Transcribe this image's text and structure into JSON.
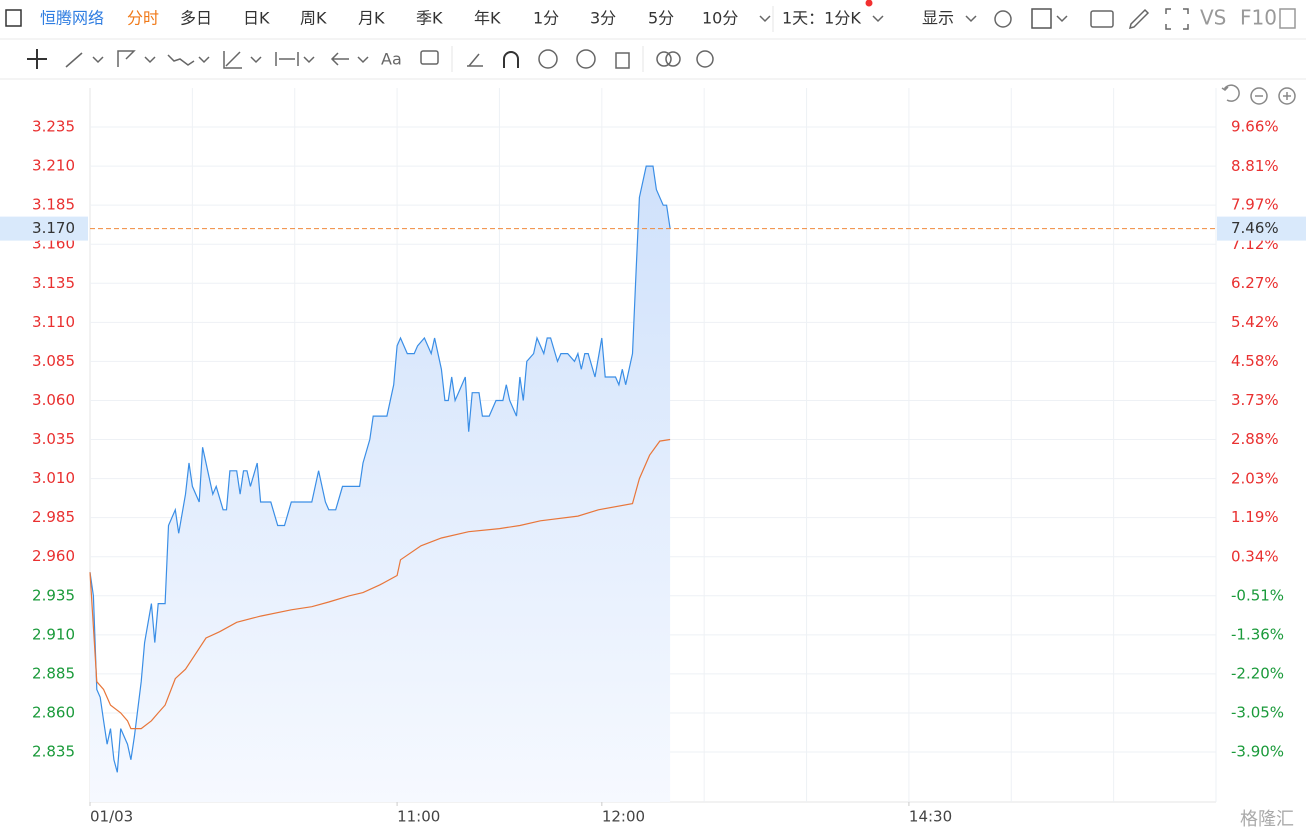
{
  "toolbar": {
    "stock_name": "恒腾网络",
    "periods": [
      "分时",
      "多日",
      "日K",
      "周K",
      "月K",
      "季K",
      "年K",
      "1分",
      "3分",
      "5分",
      "10分"
    ],
    "range": "1天：1分K",
    "display": "显示",
    "vs": "VS",
    "f10": "F10",
    "text_tool": "Aa"
  },
  "watermark": "格隆汇",
  "chart_data": {
    "type": "line",
    "xlim": [
      0,
      330
    ],
    "xticks": [
      {
        "value": 0,
        "label": "01/03"
      },
      {
        "value": 90,
        "label": "11:00"
      },
      {
        "value": 150,
        "label": "12:00"
      },
      {
        "value": 240,
        "label": "14:30"
      }
    ],
    "xgrid": [
      30,
      60,
      90,
      120,
      150,
      180,
      210,
      240,
      270,
      300,
      330
    ],
    "ylim": [
      2.803,
      3.26
    ],
    "yticks": [
      {
        "value": 2.835,
        "label": "2.835"
      },
      {
        "value": 2.86,
        "label": "2.860"
      },
      {
        "value": 2.885,
        "label": "2.885"
      },
      {
        "value": 2.91,
        "label": "2.910"
      },
      {
        "value": 2.935,
        "label": "2.935"
      },
      {
        "value": 2.96,
        "label": "2.960"
      },
      {
        "value": 2.985,
        "label": "2.985"
      },
      {
        "value": 3.01,
        "label": "3.010"
      },
      {
        "value": 3.035,
        "label": "3.035"
      },
      {
        "value": 3.06,
        "label": "3.060"
      },
      {
        "value": 3.085,
        "label": "3.085"
      },
      {
        "value": 3.11,
        "label": "3.110"
      },
      {
        "value": 3.135,
        "label": "3.135"
      },
      {
        "value": 3.16,
        "label": "3.160"
      },
      {
        "value": 3.185,
        "label": "3.185"
      },
      {
        "value": 3.21,
        "label": "3.210"
      },
      {
        "value": 3.235,
        "label": "3.235"
      }
    ],
    "y2lim": [
      -4.98,
      10.51
    ],
    "y2ticks": [
      {
        "value": -3.9,
        "label": "-3.90%"
      },
      {
        "value": -3.05,
        "label": "-3.05%"
      },
      {
        "value": -2.2,
        "label": "-2.20%"
      },
      {
        "value": -1.36,
        "label": "-1.36%"
      },
      {
        "value": -0.51,
        "label": "-0.51%"
      },
      {
        "value": 0.34,
        "label": "0.34%"
      },
      {
        "value": 1.19,
        "label": "1.19%"
      },
      {
        "value": 2.03,
        "label": "2.03%"
      },
      {
        "value": 2.88,
        "label": "2.88%"
      },
      {
        "value": 3.73,
        "label": "3.73%"
      },
      {
        "value": 4.58,
        "label": "4.58%"
      },
      {
        "value": 5.42,
        "label": "5.42%"
      },
      {
        "value": 6.27,
        "label": "6.27%"
      },
      {
        "value": 7.12,
        "label": "7.12%"
      },
      {
        "value": 7.97,
        "label": "7.97%"
      },
      {
        "value": 8.81,
        "label": "8.81%"
      },
      {
        "value": 9.66,
        "label": "9.66%"
      }
    ],
    "grid": true,
    "last_price": {
      "value": 3.17,
      "label": "3.170"
    },
    "last_change": {
      "value": 7.46,
      "label": "7.46%"
    },
    "series": [
      {
        "color": "#3a8ee6",
        "x": [
          0,
          1,
          2,
          3,
          4,
          5,
          6,
          7,
          8,
          9,
          11,
          12,
          13,
          15,
          16,
          18,
          19,
          20,
          22,
          23,
          25,
          26,
          28,
          29,
          30,
          31,
          32,
          33,
          35,
          36,
          37,
          39,
          40,
          41,
          43,
          44,
          45,
          46,
          47,
          49,
          50,
          51,
          53,
          55,
          57,
          59,
          62,
          65,
          66,
          67,
          69,
          70,
          72,
          74,
          76,
          79,
          80,
          82,
          83,
          85,
          87,
          89,
          90,
          91,
          93,
          95,
          96,
          98,
          100,
          101,
          103,
          104,
          105,
          106,
          107,
          108,
          110,
          111,
          112,
          114,
          115,
          117,
          119,
          121,
          122,
          123,
          125,
          126,
          127,
          128,
          130,
          131,
          133,
          134,
          135,
          137,
          138,
          140,
          142,
          143,
          144,
          145,
          146,
          148,
          150,
          151,
          154,
          155,
          156,
          157,
          159,
          160,
          161,
          163,
          165,
          166,
          168,
          169,
          170
        ],
        "values": [
          2.95,
          2.935,
          2.875,
          2.87,
          2.855,
          2.84,
          2.85,
          2.83,
          2.822,
          2.85,
          2.84,
          2.83,
          2.845,
          2.88,
          2.905,
          2.93,
          2.905,
          2.93,
          2.93,
          2.98,
          2.99,
          2.975,
          3.0,
          3.02,
          3.005,
          3.0,
          2.995,
          3.03,
          3.01,
          3.0,
          3.005,
          2.99,
          2.99,
          3.015,
          3.015,
          3.0,
          3.015,
          3.015,
          3.005,
          3.02,
          2.995,
          2.995,
          2.995,
          2.98,
          2.98,
          2.995,
          2.995,
          2.995,
          3.005,
          3.015,
          2.995,
          2.99,
          2.99,
          3.005,
          3.005,
          3.005,
          3.02,
          3.035,
          3.05,
          3.05,
          3.05,
          3.07,
          3.095,
          3.1,
          3.09,
          3.09,
          3.095,
          3.1,
          3.09,
          3.1,
          3.08,
          3.06,
          3.06,
          3.075,
          3.06,
          3.065,
          3.075,
          3.04,
          3.065,
          3.065,
          3.05,
          3.05,
          3.06,
          3.06,
          3.07,
          3.06,
          3.05,
          3.075,
          3.06,
          3.085,
          3.09,
          3.1,
          3.09,
          3.1,
          3.1,
          3.085,
          3.09,
          3.09,
          3.085,
          3.09,
          3.08,
          3.09,
          3.09,
          3.075,
          3.1,
          3.075,
          3.075,
          3.07,
          3.08,
          3.07,
          3.09,
          3.14,
          3.19,
          3.21,
          3.21,
          3.195,
          3.185,
          3.185,
          3.17
        ]
      },
      {
        "color": "#e8763a",
        "x": [
          0,
          2,
          4,
          6,
          9,
          11,
          12,
          15,
          18,
          20,
          22,
          25,
          28,
          31,
          34,
          38,
          43,
          50,
          59,
          65,
          70,
          76,
          80,
          85,
          90,
          91,
          97,
          103,
          111,
          120,
          126,
          132,
          143,
          149,
          159,
          161,
          164,
          167,
          170
        ],
        "values": [
          2.95,
          2.88,
          2.875,
          2.865,
          2.86,
          2.855,
          2.85,
          2.85,
          2.855,
          2.86,
          2.865,
          2.882,
          2.888,
          2.898,
          2.908,
          2.912,
          2.918,
          2.922,
          2.926,
          2.928,
          2.931,
          2.935,
          2.937,
          2.942,
          2.948,
          2.958,
          2.967,
          2.972,
          2.976,
          2.978,
          2.98,
          2.983,
          2.986,
          2.99,
          2.994,
          3.01,
          3.025,
          3.034,
          3.035
        ]
      }
    ]
  }
}
